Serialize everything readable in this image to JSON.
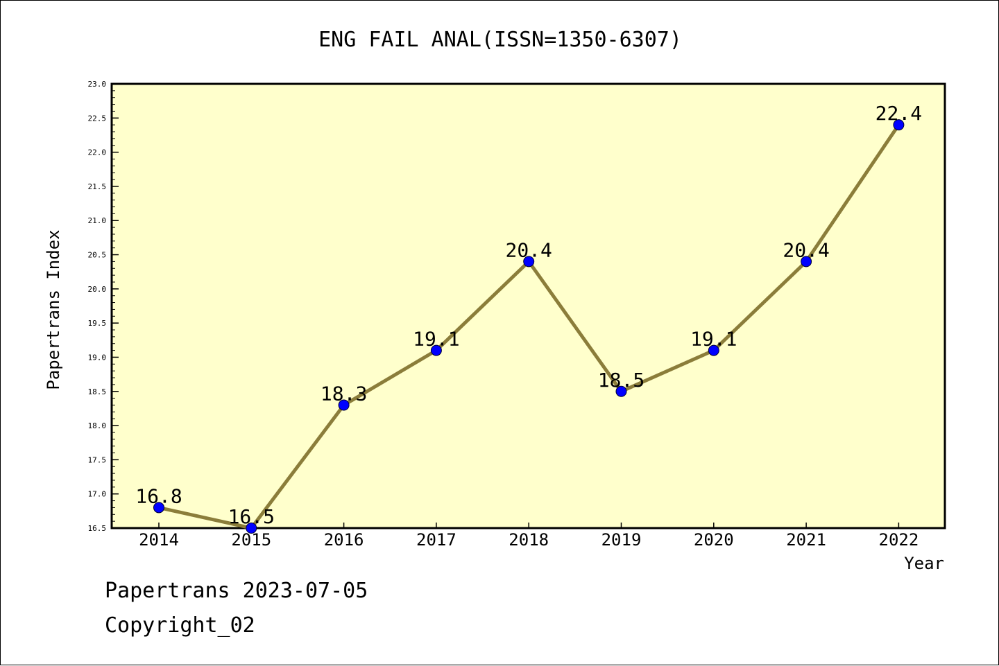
{
  "chart_data": {
    "type": "line",
    "title": "ENG FAIL ANAL(ISSN=1350-6307)",
    "xlabel": "Year",
    "ylabel": "Papertrans Index",
    "categories": [
      "2014",
      "2015",
      "2016",
      "2017",
      "2018",
      "2019",
      "2020",
      "2021",
      "2022"
    ],
    "series": [
      {
        "values": [
          16.8,
          16.5,
          18.3,
          19.1,
          20.4,
          18.5,
          19.1,
          20.4,
          22.4
        ]
      }
    ],
    "data_labels": [
      "16.8",
      "16.5",
      "18.3",
      "19.1",
      "20.4",
      "18.5",
      "19.1",
      "20.4",
      "22.4"
    ],
    "ylim": [
      16.5,
      23.0
    ],
    "yticks": [
      "16.5",
      "17.0",
      "17.5",
      "18.0",
      "18.5",
      "19.0",
      "19.5",
      "20.0",
      "20.5",
      "21.0",
      "21.5",
      "22.0",
      "22.5",
      "23.0"
    ],
    "grid": false,
    "legend": "none",
    "colors": {
      "plot_background": "#ffffcc",
      "line": "#8b7d3a",
      "marker": "#0000ff",
      "axis": "#000000"
    }
  },
  "footer": {
    "source": "Papertrans 2023-07-05",
    "copyright": "Copyright_02"
  }
}
